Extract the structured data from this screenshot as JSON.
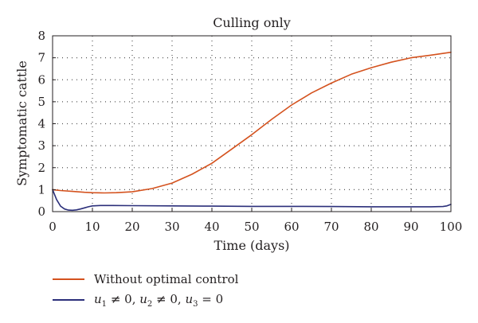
{
  "chart_data": {
    "type": "line",
    "title": "Culling only",
    "xlabel": "Time (days)",
    "ylabel": "Symptomatic cattle",
    "xlim": [
      0,
      100
    ],
    "ylim": [
      0,
      8
    ],
    "xticks": [
      "0",
      "10",
      "20",
      "30",
      "40",
      "50",
      "60",
      "70",
      "80",
      "90",
      "100"
    ],
    "yticks": [
      "0",
      "1",
      "2",
      "3",
      "4",
      "5",
      "6",
      "7",
      "8"
    ],
    "grid": true,
    "legend_position": "bottom",
    "series": [
      {
        "name": "Without optimal control",
        "color": "#d4521e",
        "x": [
          0,
          2,
          5,
          8,
          10,
          13,
          16,
          20,
          25,
          30,
          35,
          40,
          45,
          50,
          55,
          60,
          65,
          70,
          75,
          80,
          85,
          90,
          95,
          100
        ],
        "y": [
          1.0,
          0.96,
          0.92,
          0.88,
          0.86,
          0.85,
          0.86,
          0.9,
          1.05,
          1.3,
          1.7,
          2.2,
          2.85,
          3.5,
          4.2,
          4.85,
          5.4,
          5.85,
          6.25,
          6.55,
          6.8,
          7.0,
          7.12,
          7.25
        ]
      },
      {
        "name": "u1 ≠ 0, u2 ≠ 0, u3 = 0",
        "color": "#2b2f7a",
        "x": [
          0,
          1,
          2,
          3,
          4,
          5,
          6,
          7,
          8,
          9,
          10,
          12,
          15,
          20,
          30,
          40,
          50,
          60,
          70,
          80,
          90,
          95,
          98,
          99,
          100
        ],
        "y": [
          1.0,
          0.55,
          0.25,
          0.12,
          0.07,
          0.06,
          0.08,
          0.12,
          0.17,
          0.22,
          0.26,
          0.28,
          0.28,
          0.27,
          0.26,
          0.25,
          0.24,
          0.24,
          0.23,
          0.22,
          0.22,
          0.22,
          0.23,
          0.26,
          0.33
        ]
      }
    ]
  }
}
